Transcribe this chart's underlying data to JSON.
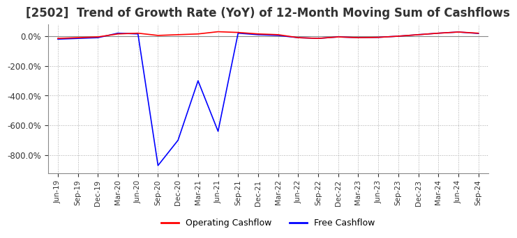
{
  "title": "[2502]  Trend of Growth Rate (YoY) of 12-Month Moving Sum of Cashflows",
  "title_fontsize": 12,
  "background_color": "#ffffff",
  "grid_color": "#aaaaaa",
  "ylim": [
    -920,
    80
  ],
  "yticks": [
    0,
    -200,
    -400,
    -600,
    -800
  ],
  "legend": [
    {
      "label": "Operating Cashflow",
      "color": "#ff0000"
    },
    {
      "label": "Free Cashflow",
      "color": "#0000ff"
    }
  ],
  "x_labels": [
    "Jun-19",
    "Sep-19",
    "Dec-19",
    "Mar-20",
    "Jun-20",
    "Sep-20",
    "Dec-20",
    "Mar-21",
    "Jun-21",
    "Sep-21",
    "Dec-21",
    "Mar-22",
    "Jun-22",
    "Sep-22",
    "Dec-22",
    "Mar-23",
    "Jun-23",
    "Sep-23",
    "Dec-23",
    "Mar-24",
    "Jun-24",
    "Sep-24"
  ],
  "operating_cashflow": [
    -15,
    -10,
    -5,
    15,
    20,
    5,
    10,
    15,
    30,
    25,
    15,
    10,
    -10,
    -15,
    -5,
    -10,
    -8,
    0,
    10,
    20,
    28,
    20
  ],
  "free_cashflow": [
    -20,
    -15,
    -10,
    20,
    15,
    -870,
    -700,
    -300,
    -640,
    20,
    10,
    5,
    -10,
    -15,
    -5,
    -10,
    -8,
    0,
    10,
    20,
    28,
    18
  ]
}
